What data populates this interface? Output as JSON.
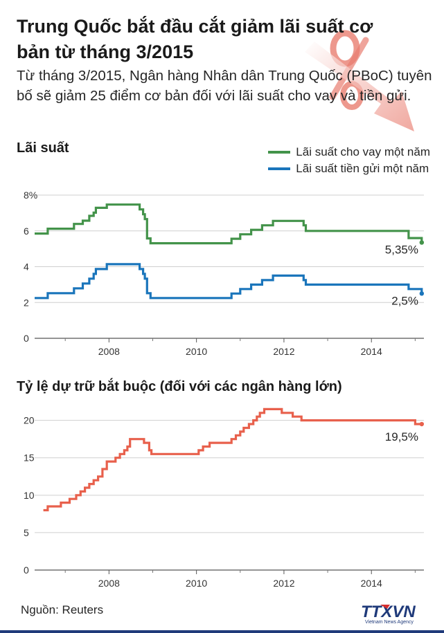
{
  "header": {
    "title": "Trung Quốc bắt đầu cắt giảm lãi suất cơ bản từ tháng 3/2015",
    "subtitle": "Từ tháng 3/2015, Ngân hàng Nhân dân Trung Quốc (PBoC) tuyên bố sẽ giảm 25 điểm cơ bản đối với lãi suất cho vay và tiền gửi."
  },
  "source": "Nguồn: Reuters",
  "logo": {
    "name": "TTXVN",
    "tagline": "Vietnam News Agency"
  },
  "colors": {
    "lending": "#43934a",
    "deposit": "#1a75bb",
    "reserve": "#e8604c",
    "percent_art": "#e97e71"
  },
  "chart_data": [
    {
      "type": "line",
      "title": "Lãi suất",
      "legend_position": "top-right",
      "xlim": [
        2006.3,
        2015.2
      ],
      "ylim": [
        0,
        8
      ],
      "x_ticks": [
        2008,
        2010,
        2012,
        2014
      ],
      "x_tick_labels": [
        "2008",
        "2010",
        "2012",
        "2014"
      ],
      "y_ticks": [
        0,
        2,
        4,
        6,
        8
      ],
      "y_tick_labels": [
        "0",
        "2",
        "4",
        "6",
        "8%"
      ],
      "series": [
        {
          "name": "Lãi suất cho vay một năm",
          "end_label": "5,35%",
          "points": [
            [
              2006.3,
              5.85
            ],
            [
              2006.6,
              5.85
            ],
            [
              2006.6,
              6.12
            ],
            [
              2007.2,
              6.12
            ],
            [
              2007.2,
              6.39
            ],
            [
              2007.4,
              6.39
            ],
            [
              2007.4,
              6.57
            ],
            [
              2007.55,
              6.57
            ],
            [
              2007.55,
              6.84
            ],
            [
              2007.65,
              6.84
            ],
            [
              2007.65,
              7.02
            ],
            [
              2007.7,
              7.02
            ],
            [
              2007.7,
              7.29
            ],
            [
              2007.95,
              7.29
            ],
            [
              2007.95,
              7.47
            ],
            [
              2008.7,
              7.47
            ],
            [
              2008.7,
              7.2
            ],
            [
              2008.78,
              7.2
            ],
            [
              2008.78,
              6.93
            ],
            [
              2008.82,
              6.93
            ],
            [
              2008.82,
              6.66
            ],
            [
              2008.87,
              6.66
            ],
            [
              2008.87,
              5.58
            ],
            [
              2008.95,
              5.58
            ],
            [
              2008.95,
              5.31
            ],
            [
              2010.8,
              5.31
            ],
            [
              2010.8,
              5.56
            ],
            [
              2011.0,
              5.56
            ],
            [
              2011.0,
              5.81
            ],
            [
              2011.25,
              5.81
            ],
            [
              2011.25,
              6.06
            ],
            [
              2011.5,
              6.06
            ],
            [
              2011.5,
              6.31
            ],
            [
              2011.75,
              6.31
            ],
            [
              2011.75,
              6.56
            ],
            [
              2012.45,
              6.56
            ],
            [
              2012.45,
              6.31
            ],
            [
              2012.5,
              6.31
            ],
            [
              2012.5,
              6.0
            ],
            [
              2014.85,
              6.0
            ],
            [
              2014.85,
              5.6
            ],
            [
              2015.15,
              5.6
            ],
            [
              2015.15,
              5.35
            ]
          ]
        },
        {
          "name": "Lãi suất tiền gửi một năm",
          "end_label": "2,5%",
          "points": [
            [
              2006.3,
              2.25
            ],
            [
              2006.6,
              2.25
            ],
            [
              2006.6,
              2.52
            ],
            [
              2007.2,
              2.52
            ],
            [
              2007.2,
              2.79
            ],
            [
              2007.4,
              2.79
            ],
            [
              2007.4,
              3.06
            ],
            [
              2007.55,
              3.06
            ],
            [
              2007.55,
              3.33
            ],
            [
              2007.65,
              3.33
            ],
            [
              2007.65,
              3.6
            ],
            [
              2007.7,
              3.6
            ],
            [
              2007.7,
              3.87
            ],
            [
              2007.95,
              3.87
            ],
            [
              2007.95,
              4.14
            ],
            [
              2008.7,
              4.14
            ],
            [
              2008.7,
              3.87
            ],
            [
              2008.78,
              3.87
            ],
            [
              2008.78,
              3.6
            ],
            [
              2008.82,
              3.6
            ],
            [
              2008.82,
              3.33
            ],
            [
              2008.87,
              3.33
            ],
            [
              2008.87,
              2.52
            ],
            [
              2008.95,
              2.52
            ],
            [
              2008.95,
              2.25
            ],
            [
              2010.8,
              2.25
            ],
            [
              2010.8,
              2.5
            ],
            [
              2011.0,
              2.5
            ],
            [
              2011.0,
              2.75
            ],
            [
              2011.25,
              2.75
            ],
            [
              2011.25,
              3.0
            ],
            [
              2011.5,
              3.0
            ],
            [
              2011.5,
              3.25
            ],
            [
              2011.75,
              3.25
            ],
            [
              2011.75,
              3.5
            ],
            [
              2012.45,
              3.5
            ],
            [
              2012.45,
              3.25
            ],
            [
              2012.5,
              3.25
            ],
            [
              2012.5,
              3.0
            ],
            [
              2014.85,
              3.0
            ],
            [
              2014.85,
              2.75
            ],
            [
              2015.15,
              2.75
            ],
            [
              2015.15,
              2.5
            ]
          ]
        }
      ]
    },
    {
      "type": "line",
      "title": "Tỷ lệ dự trữ bắt buộc (đối với các ngân hàng lớn)",
      "xlim": [
        2006.3,
        2015.2
      ],
      "ylim": [
        0,
        22
      ],
      "x_ticks": [
        2008,
        2010,
        2012,
        2014
      ],
      "x_tick_labels": [
        "2008",
        "2010",
        "2012",
        "2014"
      ],
      "y_ticks": [
        0,
        5,
        10,
        15,
        20
      ],
      "y_tick_labels": [
        "0",
        "5",
        "10",
        "15",
        "20"
      ],
      "series": [
        {
          "end_label": "19,5%",
          "points": [
            [
              2006.5,
              8.0
            ],
            [
              2006.6,
              8.0
            ],
            [
              2006.6,
              8.5
            ],
            [
              2006.9,
              8.5
            ],
            [
              2006.9,
              9.0
            ],
            [
              2007.1,
              9.0
            ],
            [
              2007.1,
              9.5
            ],
            [
              2007.25,
              9.5
            ],
            [
              2007.25,
              10.0
            ],
            [
              2007.35,
              10.0
            ],
            [
              2007.35,
              10.5
            ],
            [
              2007.45,
              10.5
            ],
            [
              2007.45,
              11.0
            ],
            [
              2007.55,
              11.0
            ],
            [
              2007.55,
              11.5
            ],
            [
              2007.65,
              11.5
            ],
            [
              2007.65,
              12.0
            ],
            [
              2007.75,
              12.0
            ],
            [
              2007.75,
              12.5
            ],
            [
              2007.85,
              12.5
            ],
            [
              2007.85,
              13.5
            ],
            [
              2007.95,
              13.5
            ],
            [
              2007.95,
              14.5
            ],
            [
              2008.15,
              14.5
            ],
            [
              2008.15,
              15.0
            ],
            [
              2008.25,
              15.0
            ],
            [
              2008.25,
              15.5
            ],
            [
              2008.35,
              15.5
            ],
            [
              2008.35,
              16.0
            ],
            [
              2008.42,
              16.0
            ],
            [
              2008.42,
              16.5
            ],
            [
              2008.48,
              16.5
            ],
            [
              2008.48,
              17.5
            ],
            [
              2008.8,
              17.5
            ],
            [
              2008.8,
              17.0
            ],
            [
              2008.92,
              17.0
            ],
            [
              2008.92,
              16.0
            ],
            [
              2008.97,
              16.0
            ],
            [
              2008.97,
              15.5
            ],
            [
              2010.05,
              15.5
            ],
            [
              2010.05,
              16.0
            ],
            [
              2010.15,
              16.0
            ],
            [
              2010.15,
              16.5
            ],
            [
              2010.3,
              16.5
            ],
            [
              2010.3,
              17.0
            ],
            [
              2010.8,
              17.0
            ],
            [
              2010.8,
              17.5
            ],
            [
              2010.9,
              17.5
            ],
            [
              2010.9,
              18.0
            ],
            [
              2011.0,
              18.0
            ],
            [
              2011.0,
              18.5
            ],
            [
              2011.08,
              18.5
            ],
            [
              2011.08,
              19.0
            ],
            [
              2011.2,
              19.0
            ],
            [
              2011.2,
              19.5
            ],
            [
              2011.3,
              19.5
            ],
            [
              2011.3,
              20.0
            ],
            [
              2011.38,
              20.0
            ],
            [
              2011.38,
              20.5
            ],
            [
              2011.45,
              20.5
            ],
            [
              2011.45,
              21.0
            ],
            [
              2011.55,
              21.0
            ],
            [
              2011.55,
              21.5
            ],
            [
              2011.95,
              21.5
            ],
            [
              2011.95,
              21.0
            ],
            [
              2012.2,
              21.0
            ],
            [
              2012.2,
              20.5
            ],
            [
              2012.4,
              20.5
            ],
            [
              2012.4,
              20.0
            ],
            [
              2015.0,
              20.0
            ],
            [
              2015.0,
              19.5
            ],
            [
              2015.15,
              19.5
            ]
          ]
        }
      ]
    }
  ]
}
